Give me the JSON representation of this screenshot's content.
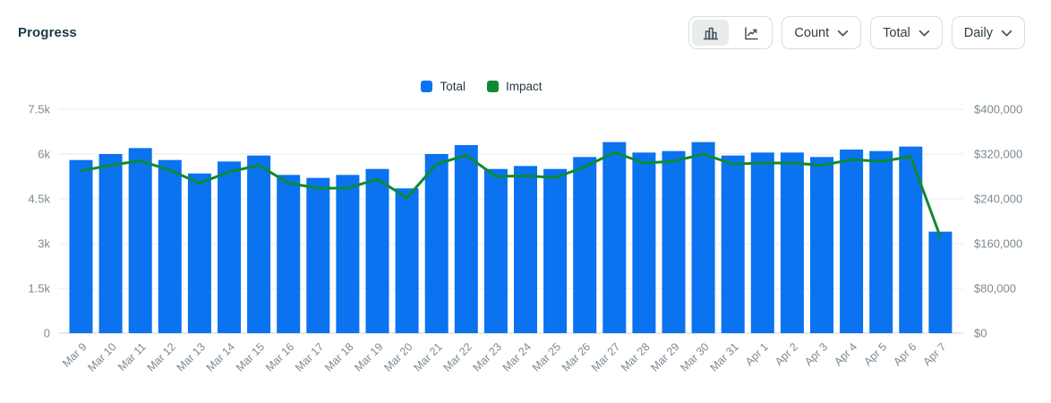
{
  "header": {
    "title": "Progress"
  },
  "toolbar": {
    "view_toggle": {
      "bar_view_icon": "bar-chart-icon",
      "line_view_icon": "line-chart-icon",
      "active_view": "bar"
    },
    "dropdowns": [
      {
        "label": "Count",
        "icon": "chevron-down-icon"
      },
      {
        "label": "Total",
        "icon": "chevron-down-icon"
      },
      {
        "label": "Daily",
        "icon": "chevron-down-icon"
      }
    ]
  },
  "legend": [
    {
      "label": "Total",
      "color": "#0b72f0"
    },
    {
      "label": "Impact",
      "color": "#0d8a33"
    }
  ],
  "colors": {
    "bar_blue": "#0b72f0",
    "line_green": "#0d8a33",
    "gridline": "#e8ebed",
    "baseline": "#cfd6da",
    "axis_text": "#7d8a93",
    "title_text": "#1b3a45"
  },
  "chart_data": {
    "type": "bar",
    "title": "Progress",
    "grid": true,
    "legend_position": "top-center",
    "categories": [
      "Mar 9",
      "Mar 10",
      "Mar 11",
      "Mar 12",
      "Mar 13",
      "Mar 14",
      "Mar 15",
      "Mar 16",
      "Mar 17",
      "Mar 18",
      "Mar 19",
      "Mar 20",
      "Mar 21",
      "Mar 22",
      "Mar 23",
      "Mar 24",
      "Mar 25",
      "Mar 26",
      "Mar 27",
      "Mar 28",
      "Mar 29",
      "Mar 30",
      "Mar 31",
      "Apr 1",
      "Apr 2",
      "Apr 3",
      "Apr 4",
      "Apr 5",
      "Apr 6",
      "Apr 7"
    ],
    "series": [
      {
        "name": "Total",
        "type": "bar",
        "axis": "left",
        "color": "#0b72f0",
        "values": [
          5800,
          6000,
          6200,
          5800,
          5350,
          5750,
          5950,
          5300,
          5200,
          5300,
          5500,
          4850,
          6000,
          6300,
          5500,
          5600,
          5500,
          5900,
          6400,
          6050,
          6100,
          6400,
          5950,
          6050,
          6050,
          5900,
          6150,
          6100,
          6250,
          3400
        ]
      },
      {
        "name": "Impact",
        "type": "line",
        "axis": "right",
        "color": "#0d8a33",
        "values": [
          290000,
          300000,
          308000,
          291000,
          268000,
          288000,
          300000,
          268000,
          259000,
          259000,
          275000,
          242000,
          302000,
          318000,
          280000,
          281000,
          278000,
          297000,
          323000,
          304000,
          307000,
          320000,
          302000,
          304000,
          304000,
          300000,
          310000,
          307000,
          315000,
          172000
        ]
      }
    ],
    "left_axis": {
      "ticks": [
        "0",
        "1.5k",
        "3k",
        "4.5k",
        "6k",
        "7.5k"
      ],
      "min": 0,
      "max": 7500
    },
    "right_axis": {
      "ticks": [
        "$0",
        "$80,000",
        "$160,000",
        "$240,000",
        "$320,000",
        "$400,000"
      ],
      "min": 0,
      "max": 400000
    }
  }
}
